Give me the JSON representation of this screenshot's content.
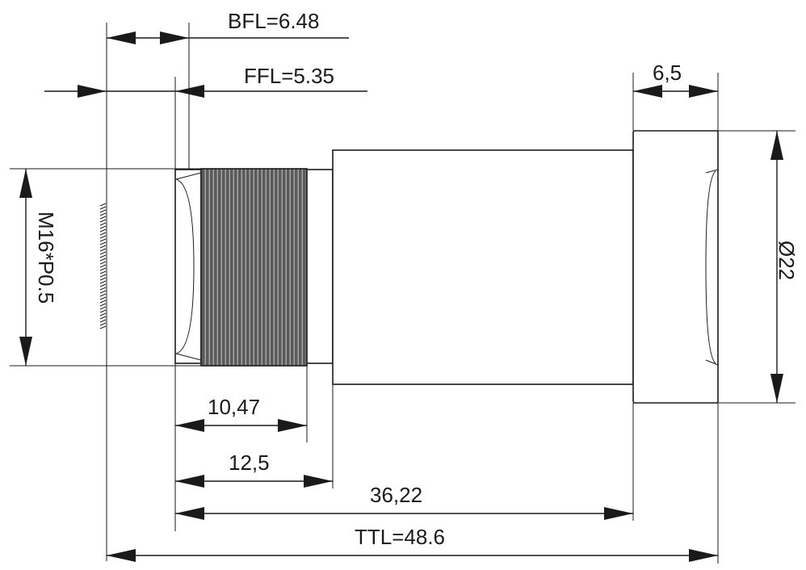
{
  "dimensions": {
    "bfl": "BFL=6.48",
    "ffl": "FFL=5.35",
    "flange_width": "6,5",
    "thread_spec": "M16*P0.5",
    "diameter": "Ø22",
    "thread_length": "10,47",
    "mount_length": "12,5",
    "body_length": "36,22",
    "ttl": "TTL=48.6"
  }
}
